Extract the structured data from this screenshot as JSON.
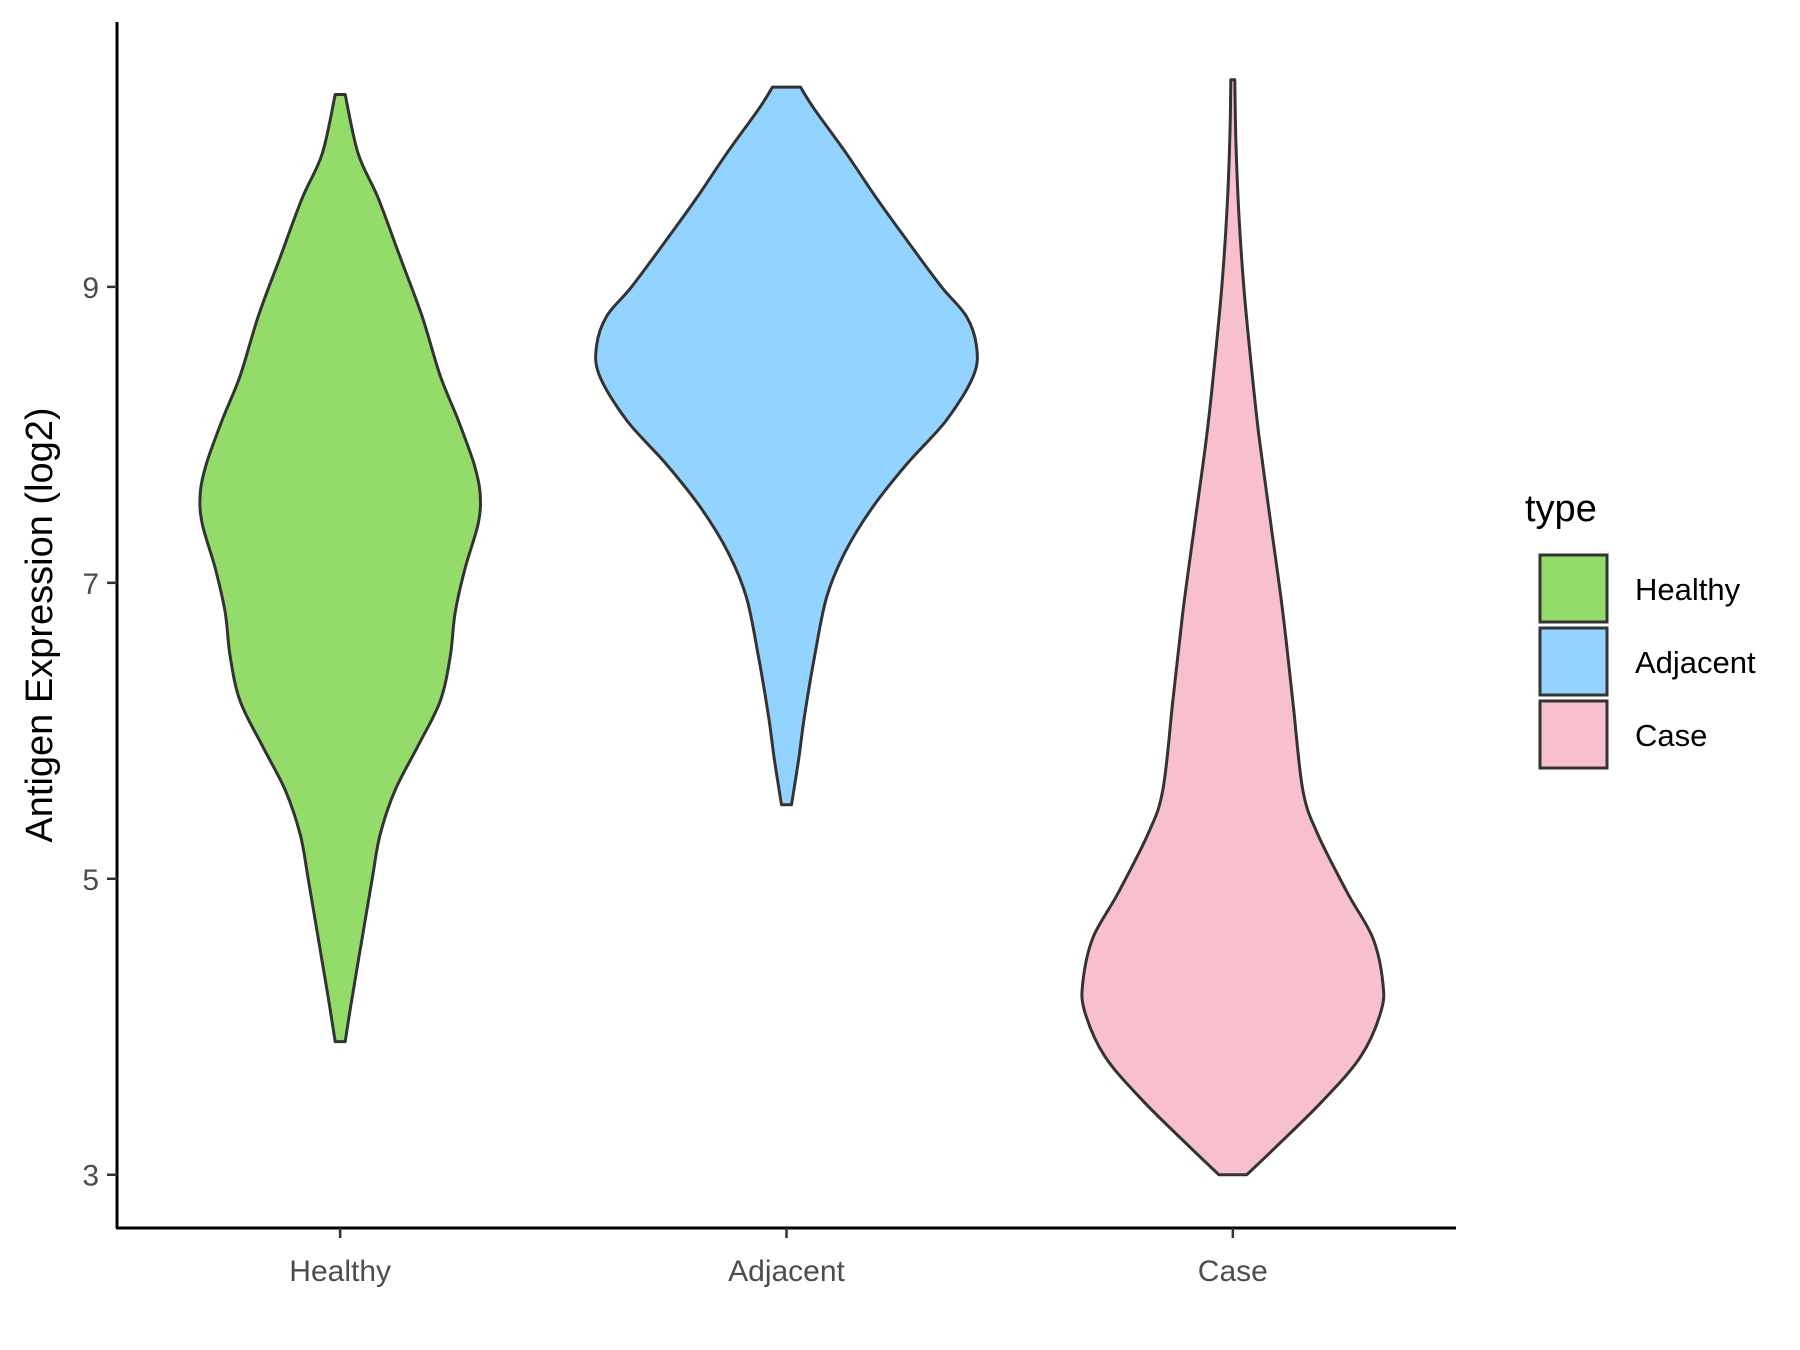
{
  "chart_data": {
    "type": "violin",
    "ylabel": "Antigen Expression (log2)",
    "xlabel": "",
    "categories": [
      "Healthy",
      "Adjacent",
      "Case"
    ],
    "yticks": [
      3,
      5,
      7,
      9
    ],
    "ylim": [
      2.64,
      10.79
    ],
    "grid": false,
    "legend": {
      "title": "type",
      "position": "right",
      "items": [
        "Healthy",
        "Adjacent",
        "Case"
      ]
    },
    "colors": {
      "Healthy": "#93dc69",
      "Adjacent": "#93d3ff",
      "Case": "#f7c0cc",
      "outline": "#333333"
    },
    "series": [
      {
        "category": "Healthy",
        "min": 3.9,
        "max": 10.3,
        "density": [
          [
            3.9,
            0.005
          ],
          [
            4.2,
            0.012
          ],
          [
            4.6,
            0.022
          ],
          [
            5.0,
            0.032
          ],
          [
            5.3,
            0.04
          ],
          [
            5.6,
            0.055
          ],
          [
            5.9,
            0.078
          ],
          [
            6.2,
            0.1
          ],
          [
            6.5,
            0.11
          ],
          [
            6.8,
            0.115
          ],
          [
            7.1,
            0.125
          ],
          [
            7.4,
            0.138
          ],
          [
            7.6,
            0.14
          ],
          [
            7.8,
            0.134
          ],
          [
            8.1,
            0.118
          ],
          [
            8.4,
            0.1
          ],
          [
            8.8,
            0.082
          ],
          [
            9.2,
            0.06
          ],
          [
            9.6,
            0.038
          ],
          [
            9.9,
            0.018
          ],
          [
            10.3,
            0.005
          ]
        ]
      },
      {
        "category": "Adjacent",
        "min": 5.5,
        "max": 10.35,
        "density": [
          [
            5.5,
            0.005
          ],
          [
            5.8,
            0.012
          ],
          [
            6.1,
            0.018
          ],
          [
            6.5,
            0.028
          ],
          [
            6.9,
            0.04
          ],
          [
            7.2,
            0.058
          ],
          [
            7.5,
            0.085
          ],
          [
            7.8,
            0.12
          ],
          [
            8.1,
            0.16
          ],
          [
            8.4,
            0.187
          ],
          [
            8.6,
            0.19
          ],
          [
            8.8,
            0.18
          ],
          [
            9.0,
            0.155
          ],
          [
            9.3,
            0.122
          ],
          [
            9.6,
            0.09
          ],
          [
            9.9,
            0.06
          ],
          [
            10.2,
            0.028
          ],
          [
            10.35,
            0.014
          ]
        ]
      },
      {
        "category": "Case",
        "min": 3.0,
        "max": 10.4,
        "density": [
          [
            3.0,
            0.014
          ],
          [
            3.2,
            0.045
          ],
          [
            3.5,
            0.09
          ],
          [
            3.8,
            0.128
          ],
          [
            4.1,
            0.148
          ],
          [
            4.3,
            0.15
          ],
          [
            4.6,
            0.14
          ],
          [
            4.9,
            0.115
          ],
          [
            5.3,
            0.085
          ],
          [
            5.6,
            0.07
          ],
          [
            6.2,
            0.06
          ],
          [
            6.8,
            0.05
          ],
          [
            7.4,
            0.038
          ],
          [
            8.0,
            0.026
          ],
          [
            8.5,
            0.018
          ],
          [
            9.0,
            0.011
          ],
          [
            9.5,
            0.006
          ],
          [
            10.0,
            0.003
          ],
          [
            10.4,
            0.002
          ]
        ]
      }
    ]
  }
}
